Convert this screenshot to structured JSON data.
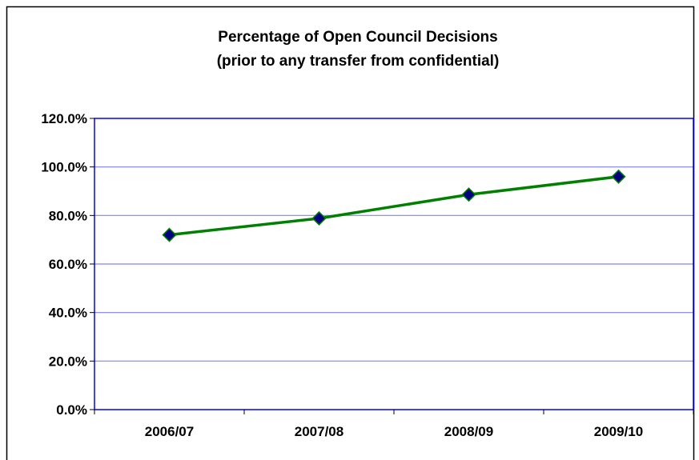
{
  "chart_data": {
    "type": "line",
    "title": "Percentage of Open Council Decisions",
    "subtitle": "(prior to any transfer from confidential)",
    "xlabel": "",
    "ylabel": "",
    "categories": [
      "2006/07",
      "2007/08",
      "2008/09",
      "2009/10"
    ],
    "series": [
      {
        "values": [
          72.0,
          78.8,
          88.6,
          96.0
        ],
        "color": "#008000",
        "marker": "diamond",
        "marker_color": "#000080"
      }
    ],
    "ylim": [
      0,
      120
    ],
    "yticks": [
      0,
      20,
      40,
      60,
      80,
      100,
      120
    ],
    "ytick_labels": [
      "0.0%",
      "20.0%",
      "40.0%",
      "60.0%",
      "80.0%",
      "100.0%",
      "120.0%"
    ],
    "grid": true,
    "grid_color": "#8080ff",
    "plot_border_color": "#0000ff",
    "legend": "none"
  }
}
